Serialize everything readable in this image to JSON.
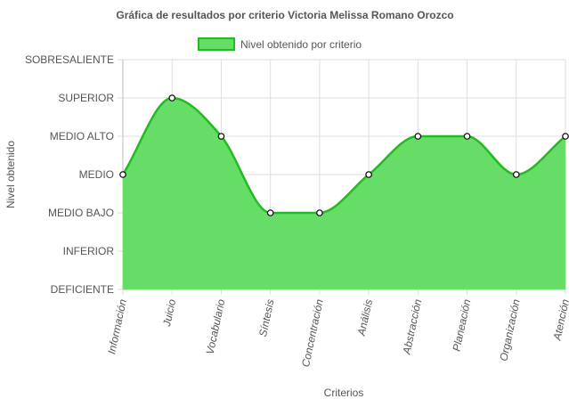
{
  "chart_data": {
    "type": "area",
    "title": "Gráfica de resultados por criterio Victoria Melissa Romano Orozco",
    "xlabel": "Criterios",
    "ylabel": "Nivel obtenido",
    "y_levels": [
      "DEFICIENTE",
      "INFERIOR",
      "MEDIO BAJO",
      "MEDIO",
      "MEDIO ALTO",
      "SUPERIOR",
      "SOBRESALIENTE"
    ],
    "categories": [
      "Información",
      "Juicio",
      "Vocabulario",
      "Síntesis",
      "Concentración",
      "Análisis",
      "Abstracción",
      "Planeación",
      "Organización",
      "Atención"
    ],
    "series": [
      {
        "name": "Nivel obtenido por criterio",
        "values": [
          "MEDIO",
          "SUPERIOR",
          "MEDIO ALTO",
          "MEDIO BAJO",
          "MEDIO BAJO",
          "MEDIO",
          "MEDIO ALTO",
          "MEDIO ALTO",
          "MEDIO",
          "MEDIO ALTO"
        ],
        "fill_color": "#66dd66",
        "line_color": "#22bb22"
      }
    ],
    "legend_position": "top",
    "grid": true
  }
}
